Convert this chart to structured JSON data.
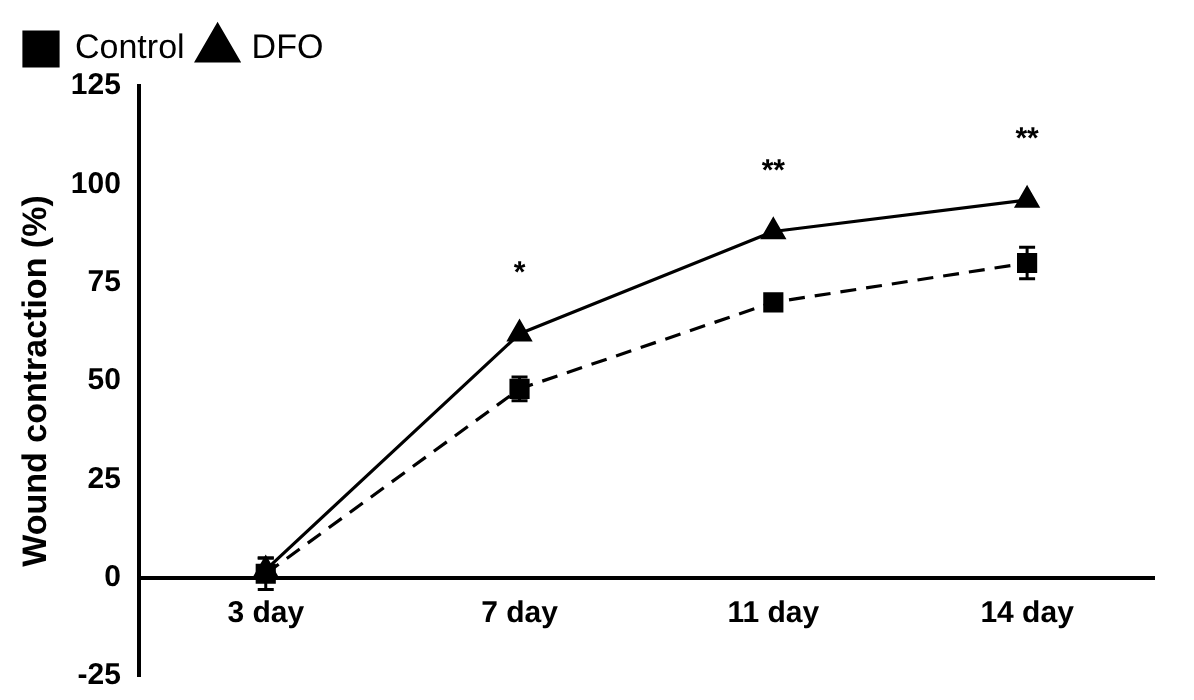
{
  "chart_data": {
    "type": "line",
    "ylabel": "Wound contraction (%)",
    "categories": [
      "3 day",
      "7 day",
      "11 day",
      "14 day"
    ],
    "series": [
      {
        "name": "Control",
        "color": "#000000",
        "values": [
          1,
          48,
          70,
          80
        ],
        "errors": [
          4,
          3,
          null,
          4
        ],
        "marker": "square",
        "line_style": "dashed"
      },
      {
        "name": "DFO",
        "color": "#000000",
        "values": [
          2,
          62,
          88,
          96
        ],
        "errors": [
          3,
          null,
          null,
          null
        ],
        "marker": "triangle",
        "line_style": "solid"
      }
    ],
    "ylim": [
      -25,
      125
    ],
    "yticks": [
      -25,
      0,
      25,
      50,
      75,
      100,
      125
    ],
    "grid": false,
    "legend": "top left",
    "annotations": [
      "*",
      "**",
      "**"
    ]
  }
}
